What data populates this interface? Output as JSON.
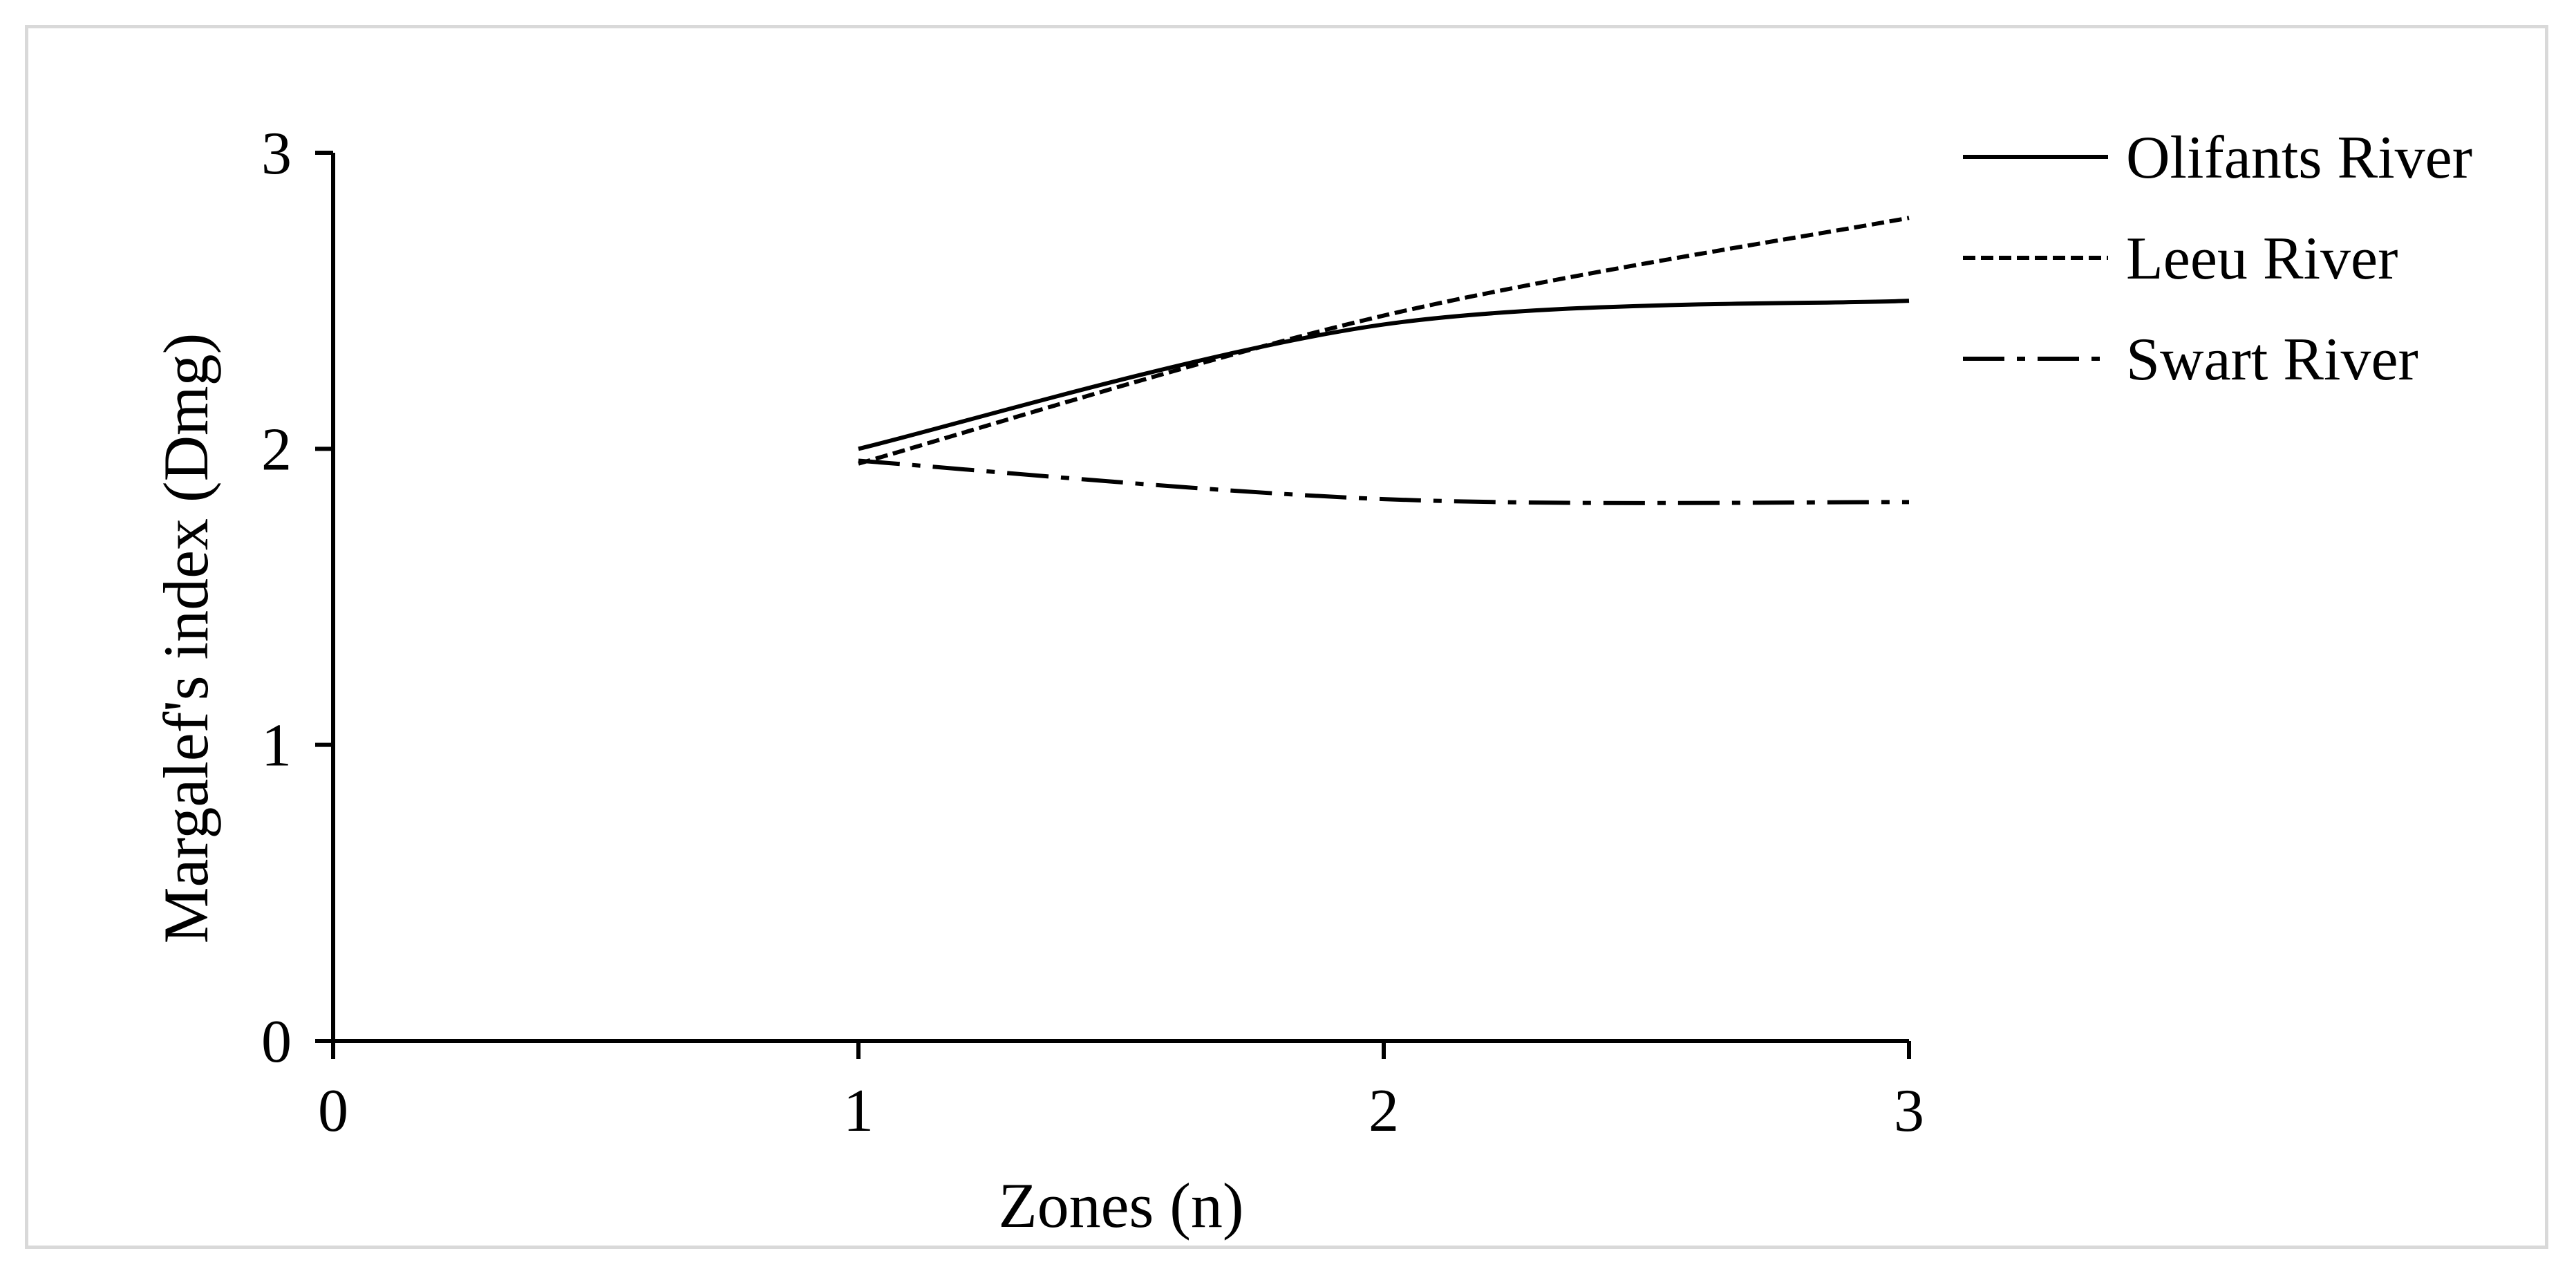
{
  "chart_data": {
    "type": "line",
    "title": "",
    "xlabel": "Zones (n)",
    "ylabel": "Margalef's index (Dmg)",
    "xlim": [
      0,
      3
    ],
    "ylim": [
      0,
      3
    ],
    "x_ticks": [
      "0",
      "1",
      "2",
      "3"
    ],
    "y_ticks": [
      "0",
      "1",
      "2",
      "3"
    ],
    "grid": false,
    "legend_position": "right-top",
    "x": [
      1,
      2,
      3
    ],
    "series": [
      {
        "name": "Olifants River",
        "values": [
          2.0,
          2.42,
          2.5
        ],
        "line_style": "solid",
        "color": "#000000"
      },
      {
        "name": "Leeu River",
        "values": [
          1.95,
          2.45,
          2.78
        ],
        "line_style": "dashed",
        "color": "#000000"
      },
      {
        "name": "Swart River",
        "values": [
          1.96,
          1.83,
          1.82
        ],
        "line_style": "dash-dot",
        "color": "#000000"
      }
    ]
  }
}
